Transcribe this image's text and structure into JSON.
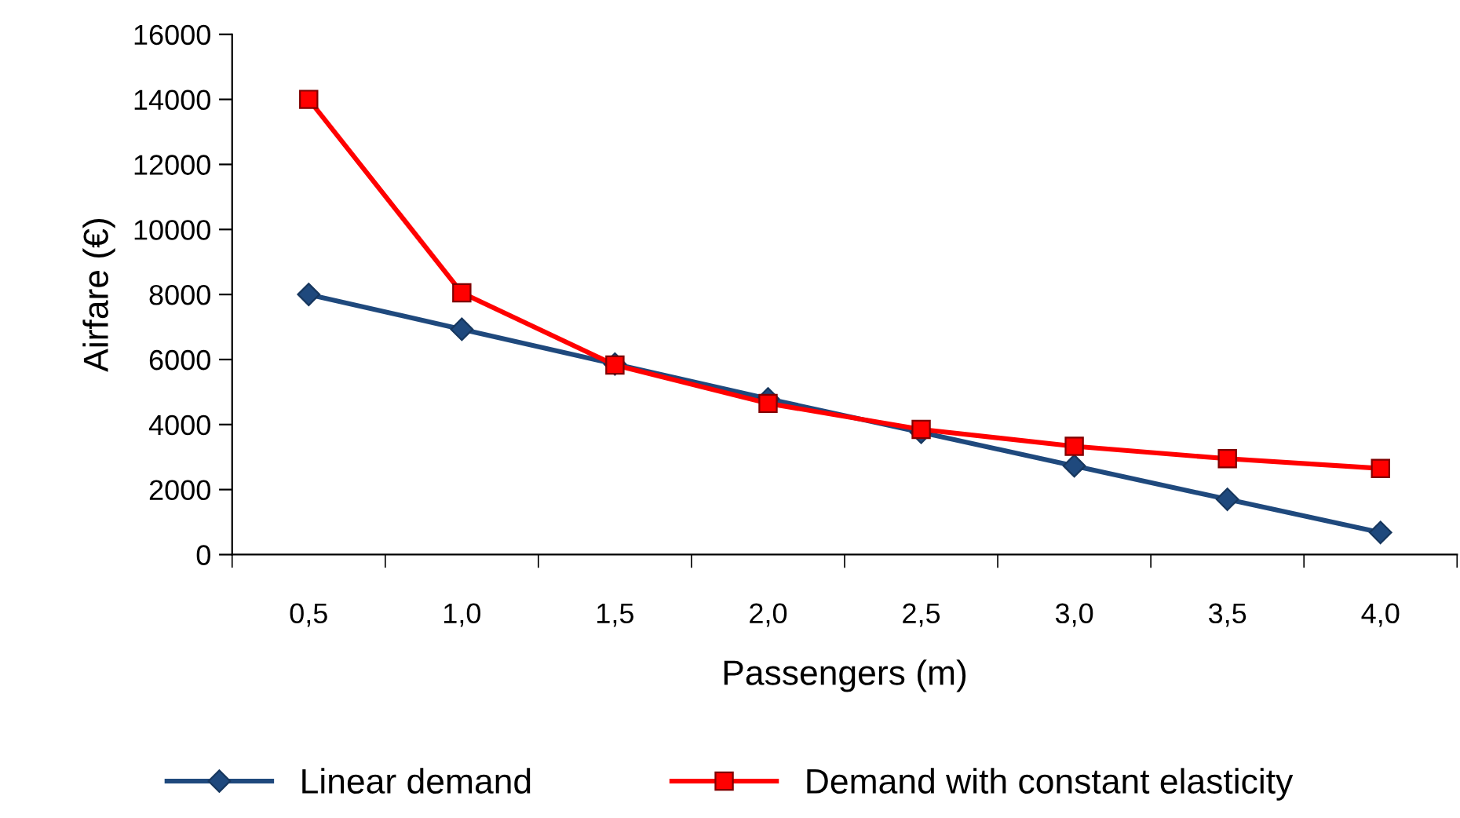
{
  "chart_data": {
    "type": "line",
    "xlabel": "Passengers (m)",
    "ylabel": "Airfare (€)",
    "categories": [
      "0,5",
      "1,0",
      "1,5",
      "2,0",
      "2,5",
      "3,0",
      "3,5",
      "4,0"
    ],
    "series": [
      {
        "name": "Linear demand",
        "color": "#1f497d",
        "marker": "diamond",
        "values": [
          8000,
          6930,
          5860,
          4790,
          3760,
          2730,
          1700,
          680
        ]
      },
      {
        "name": "Demand with constant elasticity",
        "color": "#ff0000",
        "marker": "square",
        "values": [
          14000,
          8050,
          5830,
          4650,
          3850,
          3330,
          2950,
          2650
        ]
      }
    ],
    "ylim": [
      0,
      16000
    ],
    "yticks": [
      0,
      2000,
      4000,
      6000,
      8000,
      10000,
      12000,
      14000,
      16000
    ],
    "grid": false,
    "legend": "bottom",
    "line_style": "solid"
  }
}
